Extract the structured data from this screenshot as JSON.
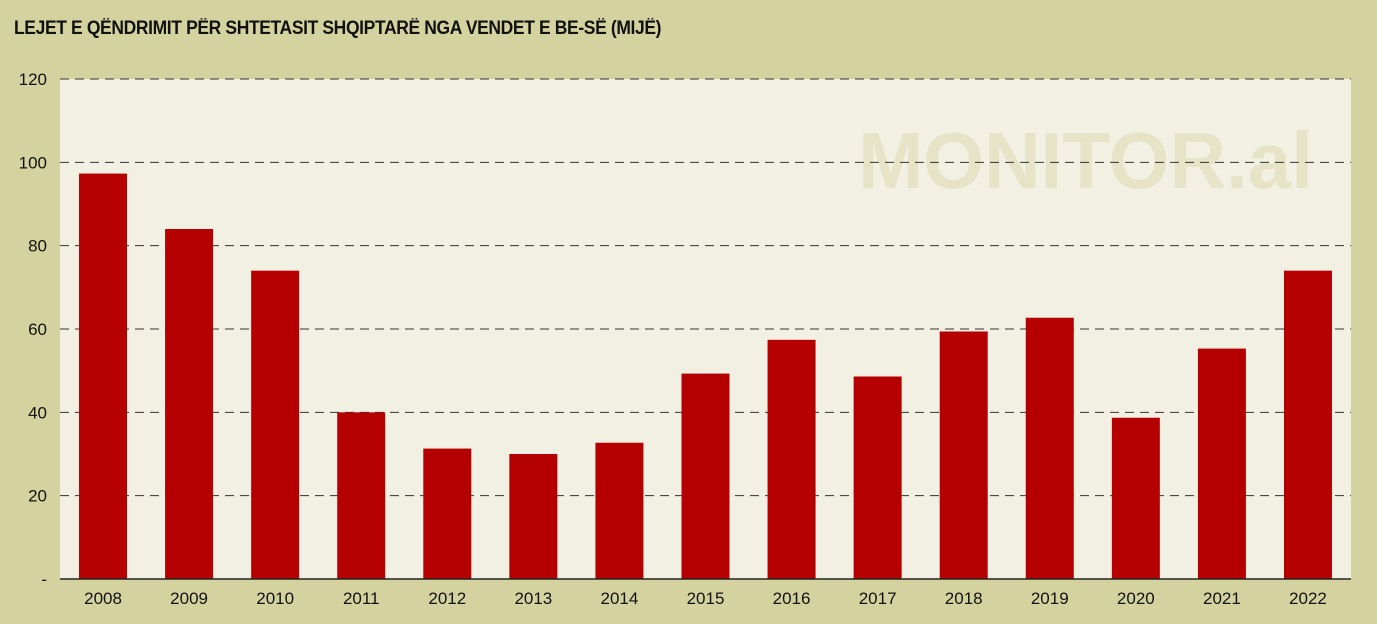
{
  "chart_data": {
    "type": "bar",
    "title": "LEJET E QËNDRIMIT PËR SHTETASIT SHQIPTARË NGA VENDET E BE-SË (MIJË)",
    "xlabel": "",
    "ylabel": "",
    "categories": [
      "2008",
      "2009",
      "2010",
      "2011",
      "2012",
      "2013",
      "2014",
      "2015",
      "2016",
      "2017",
      "2018",
      "2019",
      "2020",
      "2021",
      "2022"
    ],
    "values": [
      97.3,
      84.0,
      74.0,
      40.0,
      31.3,
      30.0,
      32.7,
      49.3,
      57.4,
      48.6,
      59.4,
      62.7,
      38.7,
      55.3,
      74.0
    ],
    "ylim": [
      0,
      120
    ],
    "y_ticks": [
      {
        "value": 0,
        "label": "-"
      },
      {
        "value": 20,
        "label": "20"
      },
      {
        "value": 40,
        "label": "40"
      },
      {
        "value": 60,
        "label": "60"
      },
      {
        "value": 80,
        "label": "80"
      },
      {
        "value": 100,
        "label": "100"
      },
      {
        "value": 120,
        "label": "120"
      }
    ],
    "grid": true,
    "grid_style": "dashed",
    "legend": "none",
    "watermark": "MONITOR.al",
    "colors": {
      "background": "#d4d39f",
      "plot_background": "#f1f0e2",
      "bar": "#b40000",
      "grid": "#333333",
      "watermark": "#e6e3c6"
    }
  }
}
